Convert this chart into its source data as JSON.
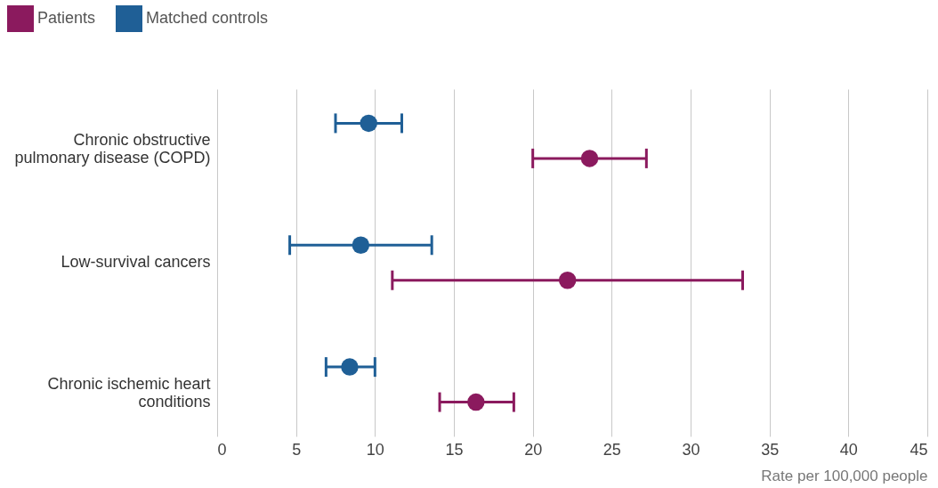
{
  "chart_data": {
    "type": "scatter",
    "orientation": "horizontal",
    "xlabel": "Rate per 100,000 people",
    "categories": [
      "Chronic obstructive pulmonary disease (COPD)",
      "Low-survival cancers",
      "Chronic ischemic heart conditions"
    ],
    "series": [
      {
        "name": "Patients",
        "color": "#8b1a5e",
        "values": [
          23.6,
          22.2,
          16.4
        ],
        "errors": [
          [
            20.0,
            27.2
          ],
          [
            11.1,
            33.3
          ],
          [
            14.1,
            18.8
          ]
        ]
      },
      {
        "name": "Matched controls",
        "color": "#1f5f96",
        "values": [
          9.6,
          9.1,
          8.4
        ],
        "errors": [
          [
            7.5,
            11.7
          ],
          [
            4.6,
            13.6
          ],
          [
            6.9,
            10.0
          ]
        ]
      }
    ],
    "xlim": [
      0,
      45
    ],
    "xticks": [
      0,
      5,
      10,
      15,
      20,
      25,
      30,
      35,
      40,
      45
    ],
    "grid": "x",
    "legend": "top left",
    "marker": "circle"
  }
}
